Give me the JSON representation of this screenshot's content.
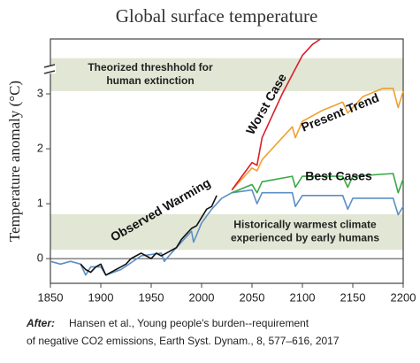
{
  "chart_data": {
    "type": "line",
    "title": "Global surface temperature",
    "y_label": "Temperature anomaly (°C)",
    "xlim": [
      1850,
      2200
    ],
    "xticks": [
      1850,
      1900,
      1950,
      2000,
      2050,
      2100,
      2150,
      2200
    ],
    "ylim": [
      -0.45,
      4
    ],
    "yticks": [
      0,
      1,
      2,
      3
    ],
    "bands": [
      {
        "from": 3.05,
        "to": 3.65,
        "label": [
          "Theorized threshhold for",
          "human extinction"
        ]
      },
      {
        "from": 0.16,
        "to": 0.81,
        "label": [
          "Historically warmest climate",
          "experienced by early humans"
        ]
      }
    ],
    "series": [
      {
        "color": "#5b8fc7",
        "x": [
          1850,
          1860,
          1870,
          1880,
          1885,
          1890,
          1900,
          1905,
          1920,
          1940,
          1960,
          1963,
          1970,
          1980,
          1990,
          1992,
          2000,
          2010,
          2020,
          2030,
          2050,
          2055,
          2060,
          2090,
          2093,
          2100,
          2140,
          2145,
          2150,
          2190,
          2195,
          2200
        ],
        "values": [
          -0.05,
          -0.1,
          -0.05,
          -0.1,
          -0.3,
          -0.15,
          -0.15,
          -0.3,
          -0.2,
          0.05,
          0.1,
          -0.05,
          0.1,
          0.3,
          0.5,
          0.3,
          0.65,
          0.9,
          1.1,
          1.2,
          1.25,
          1.0,
          1.2,
          1.2,
          0.95,
          1.15,
          1.15,
          0.9,
          1.1,
          1.1,
          0.8,
          0.95
        ]
      },
      {
        "name": "Observed Warming",
        "color": "#111111",
        "x": [
          1880,
          1885,
          1890,
          1895,
          1900,
          1905,
          1910,
          1915,
          1920,
          1925,
          1930,
          1935,
          1940,
          1945,
          1950,
          1955,
          1960,
          1965,
          1970,
          1975,
          1980,
          1985,
          1990,
          1995,
          2000,
          2005,
          2010,
          2015
        ],
        "values": [
          -0.1,
          -0.2,
          -0.25,
          -0.15,
          -0.1,
          -0.3,
          -0.25,
          -0.2,
          -0.15,
          -0.1,
          0,
          0.05,
          0.1,
          0.05,
          0,
          0.1,
          0.05,
          0.1,
          0.15,
          0.2,
          0.35,
          0.45,
          0.55,
          0.6,
          0.75,
          0.9,
          0.95,
          1.15
        ]
      },
      {
        "name": "Best Cases",
        "color": "#3aa845",
        "x": [
          2030,
          2050,
          2055,
          2060,
          2090,
          2093,
          2100,
          2140,
          2145,
          2150,
          2190,
          2195,
          2200
        ],
        "values": [
          1.2,
          1.35,
          1.2,
          1.4,
          1.5,
          1.3,
          1.5,
          1.5,
          1.3,
          1.5,
          1.55,
          1.2,
          1.45
        ]
      },
      {
        "name": "Present Trend",
        "color": "#f0a030",
        "x": [
          2030,
          2040,
          2050,
          2055,
          2060,
          2070,
          2080,
          2090,
          2093,
          2100,
          2120,
          2140,
          2145,
          2160,
          2180,
          2190,
          2195,
          2200
        ],
        "values": [
          1.25,
          1.45,
          1.65,
          1.6,
          1.8,
          2.0,
          2.2,
          2.4,
          2.2,
          2.5,
          2.7,
          2.85,
          2.65,
          2.95,
          3.1,
          3.1,
          2.75,
          3.05
        ]
      },
      {
        "name": "Worst Case",
        "color": "#d8202a",
        "x": [
          2030,
          2040,
          2050,
          2055,
          2060,
          2070,
          2080,
          2090,
          2100,
          2110,
          2118
        ],
        "values": [
          1.25,
          1.5,
          1.75,
          1.7,
          2.2,
          2.6,
          3.0,
          3.35,
          3.7,
          3.9,
          4.0
        ]
      }
    ],
    "source": {
      "lead": "After:",
      "lines": [
        "Hansen et al., Young people's burden--requirement",
        "of negative CO2 emissions, Earth Syst. Dynam., 8, 577–616, 2017"
      ]
    }
  }
}
